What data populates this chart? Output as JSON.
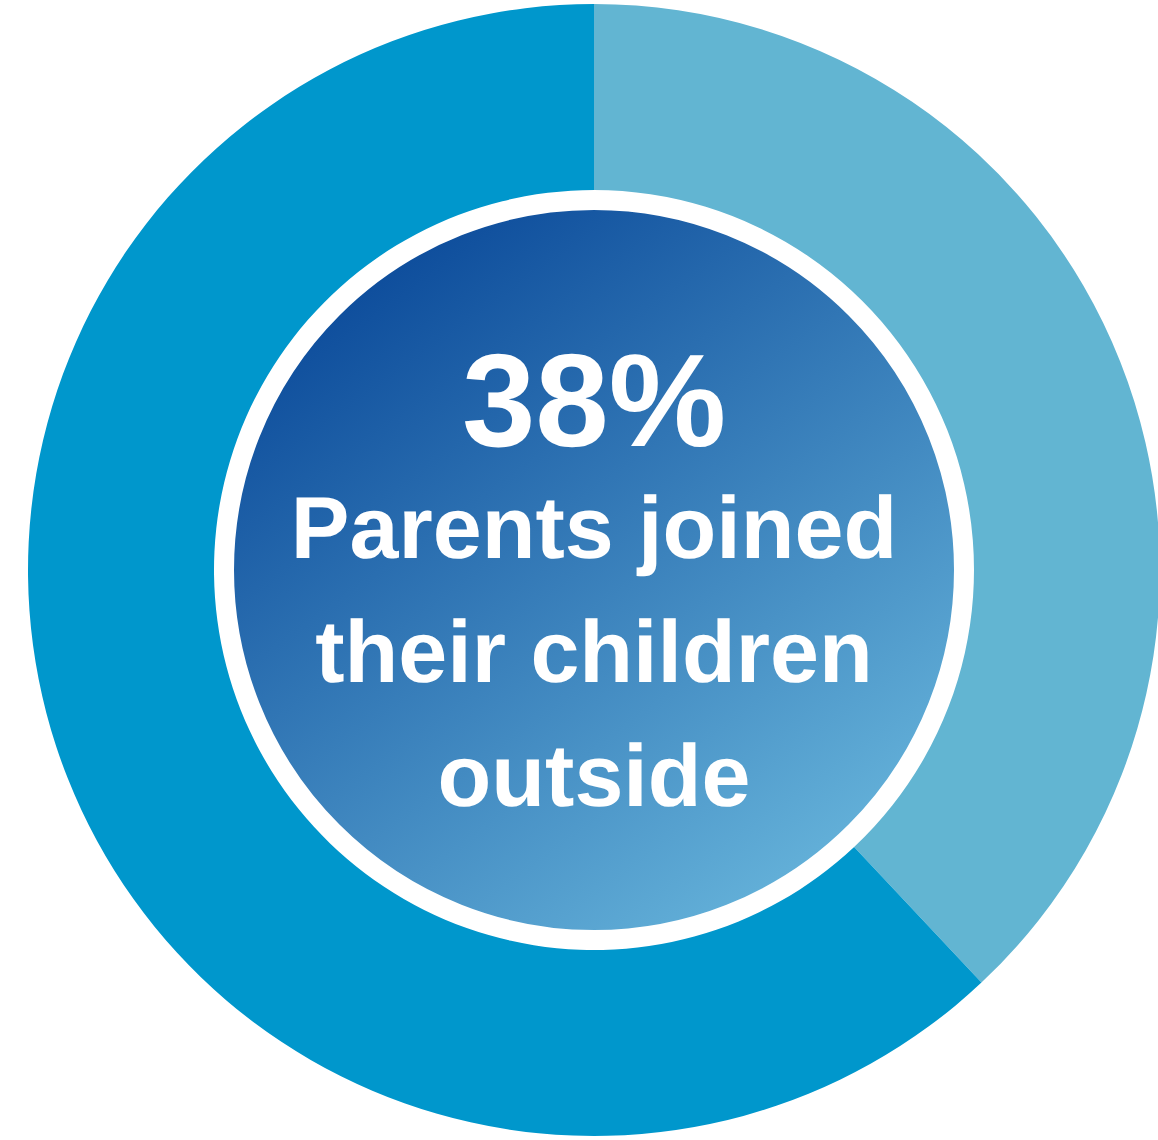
{
  "chart_data": {
    "type": "donut",
    "title": "38%",
    "subtitle": "Parents joined their children outside",
    "categories": [
      null,
      null
    ],
    "values": [
      38,
      62
    ],
    "colors": [
      "#62b5d2",
      "#0097cc"
    ]
  }
}
